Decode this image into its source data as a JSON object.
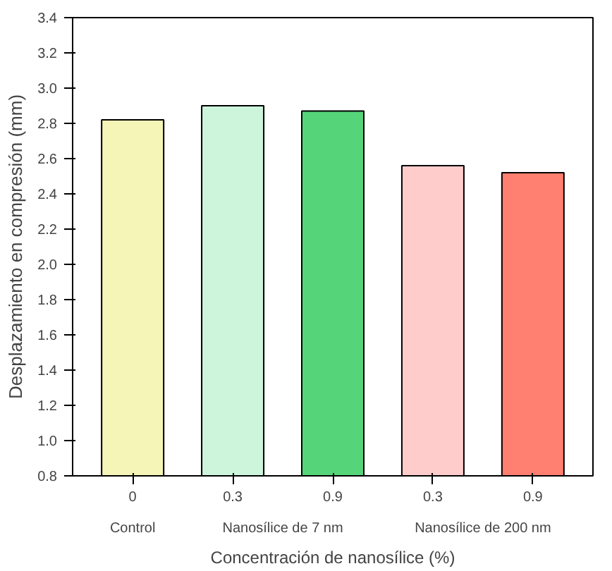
{
  "chart_data": {
    "type": "bar",
    "xlabel": "Concentración de nanosílice (%)",
    "ylabel": "Desplazamiento en compresión (mm)",
    "categories": [
      "0",
      "0.3",
      "0.9",
      "0.3",
      "0.9"
    ],
    "values": [
      2.82,
      2.9,
      2.87,
      2.56,
      2.52
    ],
    "colors": [
      "#f5f5b8",
      "#ccf5dc",
      "#55d47a",
      "#ffcccc",
      "#ff7f70"
    ],
    "annotations": [
      "Control",
      "Nanosílice de 7 nm",
      "Nanosílice de 200 nm"
    ],
    "ylim": [
      0.8,
      3.4
    ],
    "yticks": [
      0.8,
      {
        "value": 1,
        "label": "1.0"
      },
      1.2,
      1.4,
      1.6,
      1.8,
      {
        "value": 2,
        "label": "2.0"
      },
      2.2,
      2.4,
      2.6,
      2.8,
      {
        "value": 3,
        "label": "3.0"
      },
      3.2,
      3.4
    ],
    "grid": false
  }
}
